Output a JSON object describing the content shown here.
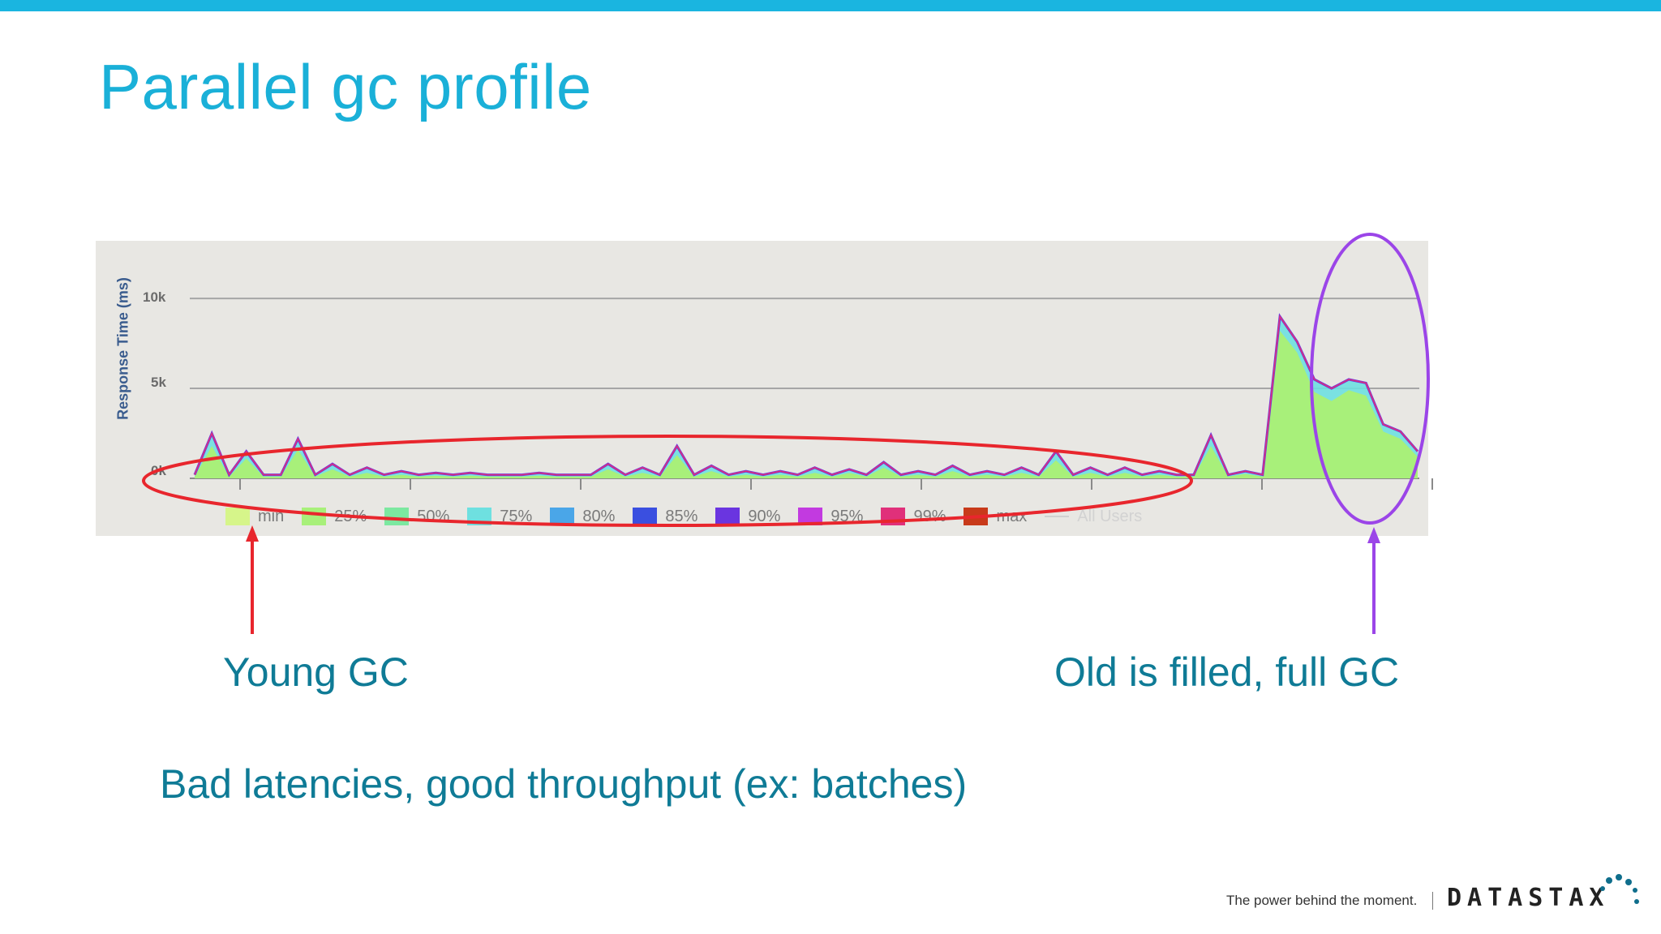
{
  "slide": {
    "title": "Parallel gc profile",
    "accent_color": "#1ab5e0"
  },
  "chart": {
    "y_axis_title": "Response Time (ms)",
    "y_ticks": [
      "10k",
      "5k",
      "0k"
    ],
    "legend": [
      {
        "label": "min",
        "color": "#d6f58a"
      },
      {
        "label": "25%",
        "color": "#a8f07a"
      },
      {
        "label": "50%",
        "color": "#7ce8a0"
      },
      {
        "label": "75%",
        "color": "#6ee0e0"
      },
      {
        "label": "80%",
        "color": "#4aa6e8"
      },
      {
        "label": "85%",
        "color": "#3a4fe0"
      },
      {
        "label": "90%",
        "color": "#6a35e0"
      },
      {
        "label": "95%",
        "color": "#c23ae0"
      },
      {
        "label": "99%",
        "color": "#e0307a"
      },
      {
        "label": "max",
        "color": "#c83a1a"
      }
    ],
    "legend_faded_label": "All Users"
  },
  "chart_data": {
    "type": "area",
    "ylabel": "Response Time (ms)",
    "ylim": [
      0,
      10500
    ],
    "yticks": [
      0,
      5000,
      10000
    ],
    "grid": true,
    "legend_position": "bottom",
    "x": [
      0,
      1,
      2,
      3,
      4,
      5,
      6,
      7,
      8,
      9,
      10,
      11,
      12,
      13,
      14,
      15,
      16,
      17,
      18,
      19,
      20,
      21,
      22,
      23,
      24,
      25,
      26,
      27,
      28,
      29,
      30,
      31,
      32,
      33,
      34,
      35,
      36,
      37,
      38,
      39,
      40,
      41,
      42,
      43,
      44,
      45,
      46,
      47,
      48,
      49,
      50,
      51,
      52,
      53,
      54,
      55,
      56,
      57,
      58,
      59,
      60,
      61,
      62,
      63,
      64,
      65,
      66,
      67,
      68,
      69,
      70,
      71
    ],
    "series": [
      {
        "name": "max",
        "values": [
          200,
          2500,
          200,
          1500,
          200,
          200,
          2200,
          200,
          800,
          200,
          600,
          200,
          400,
          200,
          300,
          200,
          300,
          200,
          200,
          200,
          300,
          200,
          200,
          200,
          800,
          200,
          600,
          200,
          1800,
          200,
          700,
          200,
          400,
          200,
          400,
          200,
          600,
          200,
          500,
          200,
          900,
          200,
          400,
          200,
          700,
          200,
          400,
          200,
          600,
          200,
          1500,
          200,
          600,
          200,
          600,
          200,
          400,
          200,
          200,
          2400,
          200,
          400,
          200,
          9000,
          7600,
          5500,
          5000,
          5500,
          5300,
          3000,
          2600,
          1500
        ]
      },
      {
        "name": "min",
        "values": [
          100,
          1800,
          100,
          1100,
          100,
          100,
          1600,
          100,
          500,
          100,
          300,
          100,
          200,
          100,
          150,
          100,
          150,
          100,
          100,
          100,
          150,
          100,
          100,
          100,
          500,
          100,
          300,
          100,
          1300,
          100,
          400,
          100,
          200,
          100,
          200,
          100,
          300,
          100,
          300,
          100,
          600,
          100,
          200,
          100,
          400,
          100,
          200,
          100,
          300,
          100,
          1000,
          100,
          300,
          100,
          300,
          100,
          200,
          100,
          100,
          1800,
          100,
          250,
          100,
          8200,
          7000,
          4800,
          4300,
          4900,
          4600,
          2600,
          2200,
          1200
        ]
      }
    ]
  },
  "callouts": {
    "young_gc": "Young GC",
    "full_gc": "Old is filled, full GC",
    "summary": "Bad latencies, good throughput (ex: batches)"
  },
  "annotations": {
    "young_color": "#e8262d",
    "old_color": "#9b45e8"
  },
  "footer": {
    "tagline": "The power behind the moment.",
    "brand": "DATASTAX"
  }
}
